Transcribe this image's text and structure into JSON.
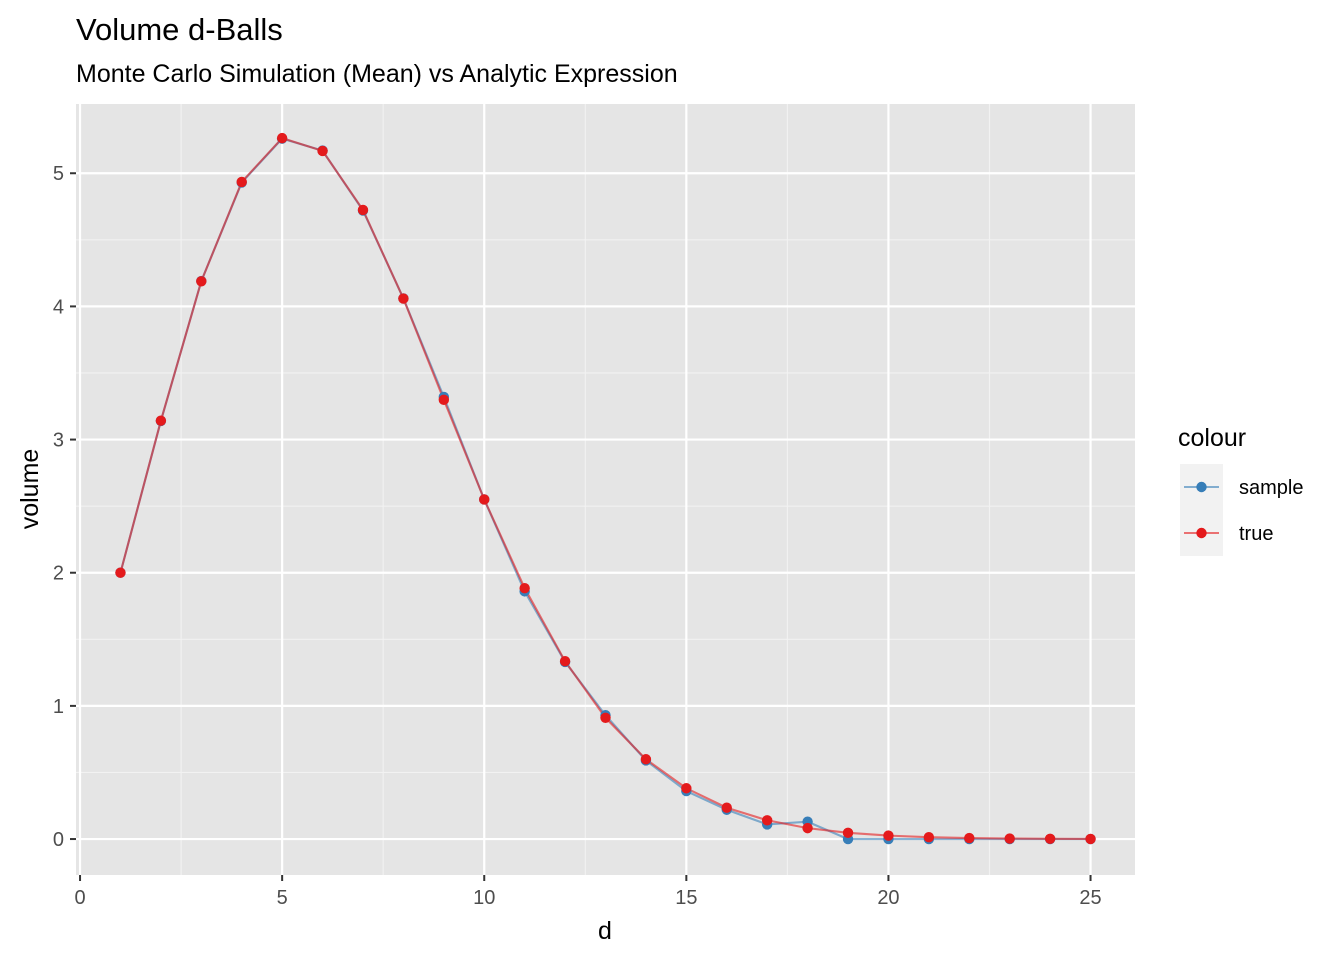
{
  "chart_data": {
    "type": "line",
    "title": "Volume d-Balls",
    "subtitle": "Monte Carlo Simulation (Mean) vs Analytic Expression",
    "xlabel": "d",
    "ylabel": "volume",
    "xlim": [
      -0.1,
      26.1
    ],
    "ylim": [
      -0.27,
      5.52
    ],
    "x_ticks": [
      0,
      5,
      10,
      15,
      20,
      25
    ],
    "x_minor": [
      2.5,
      7.5,
      12.5,
      17.5,
      22.5
    ],
    "y_ticks": [
      0,
      1,
      2,
      3,
      4,
      5
    ],
    "y_minor": [
      0.5,
      1.5,
      2.5,
      3.5,
      4.5
    ],
    "grid": true,
    "legend": {
      "title": "colour",
      "position": "right"
    },
    "x": [
      1,
      2,
      3,
      4,
      5,
      6,
      7,
      8,
      9,
      10,
      11,
      12,
      13,
      14,
      15,
      16,
      17,
      18,
      19,
      20,
      21,
      22,
      23,
      24,
      25
    ],
    "series": [
      {
        "name": "sample",
        "color": "#377eb8",
        "values": [
          2.0,
          3.14,
          4.19,
          4.93,
          5.26,
          5.17,
          4.72,
          4.06,
          3.32,
          2.55,
          1.86,
          1.33,
          0.93,
          0.59,
          0.36,
          0.22,
          0.11,
          0.13,
          0.0,
          0.0,
          0.0,
          0.0,
          0.0,
          0.0,
          0.0
        ]
      },
      {
        "name": "true",
        "color": "#e41a1c",
        "values": [
          2.0,
          3.1416,
          4.1888,
          4.9348,
          5.2638,
          5.1677,
          4.7248,
          4.0587,
          3.2985,
          2.5502,
          1.8841,
          1.3353,
          0.9106,
          0.5993,
          0.3814,
          0.2353,
          0.141,
          0.0821,
          0.0466,
          0.0258,
          0.0139,
          0.0073,
          0.0038,
          0.0019,
          0.001
        ]
      }
    ]
  }
}
